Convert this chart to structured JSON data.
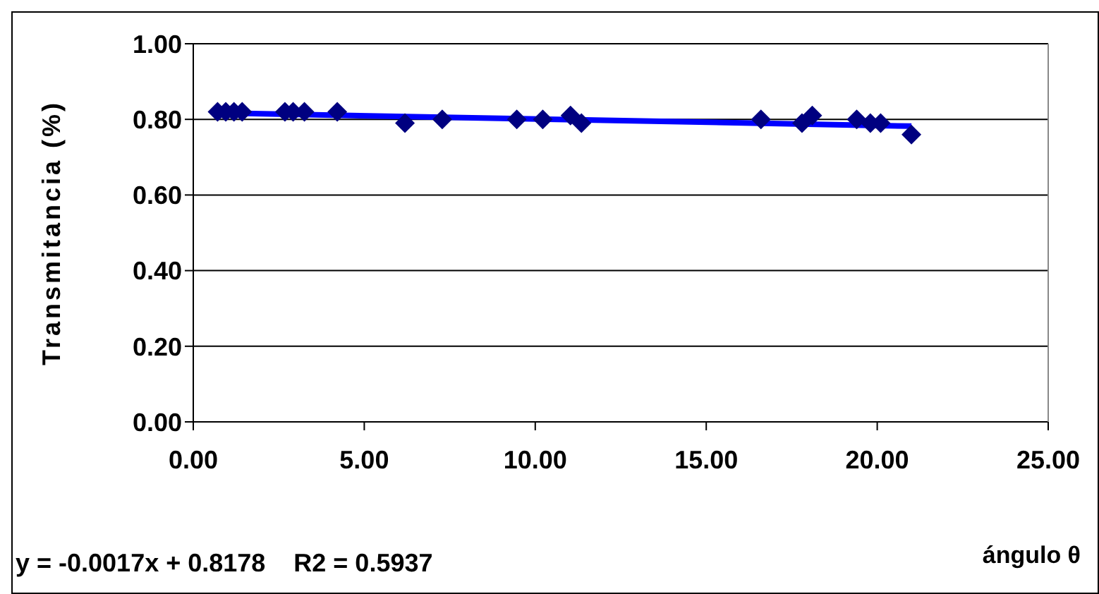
{
  "chart_data": {
    "type": "scatter",
    "xlabel": "ángulo θ",
    "ylabel": "Transmitancia (%)",
    "annotations": [
      "y = -0.0017x + 0.8178    R2 = 0.5937"
    ],
    "xlim": [
      0,
      25
    ],
    "xticks": [
      {
        "value": 0,
        "label": "0.00"
      },
      {
        "value": 5,
        "label": "5.00"
      },
      {
        "value": 10,
        "label": "10.00"
      },
      {
        "value": 15,
        "label": "15.00"
      },
      {
        "value": 20,
        "label": "20.00"
      },
      {
        "value": 25,
        "label": "25.00"
      }
    ],
    "ylim": [
      0,
      1
    ],
    "yticks": [
      {
        "value": 0,
        "label": "0.00"
      },
      {
        "value": 0.2,
        "label": "0.20"
      },
      {
        "value": 0.4,
        "label": "0.40"
      },
      {
        "value": 0.6,
        "label": "0.60"
      },
      {
        "value": 0.8,
        "label": "0.80"
      },
      {
        "value": 1,
        "label": "1.00"
      }
    ],
    "grid": "y",
    "series": [
      {
        "marker": "diamond",
        "color": "#000080",
        "x": [
          0.71,
          0.95,
          1.19,
          1.43,
          2.68,
          2.92,
          3.25,
          4.21,
          6.19,
          7.28,
          9.46,
          10.22,
          11.03,
          11.35,
          16.6,
          17.8,
          18.1,
          19.4,
          19.8,
          20.1,
          21.0
        ],
        "values": [
          0.82,
          0.82,
          0.82,
          0.82,
          0.82,
          0.82,
          0.82,
          0.82,
          0.79,
          0.8,
          0.8,
          0.8,
          0.81,
          0.79,
          0.8,
          0.79,
          0.81,
          0.8,
          0.79,
          0.79,
          0.76
        ]
      },
      {
        "type": "line",
        "color": "#0000ff",
        "x": [
          0.71,
          21.0
        ],
        "values": [
          0.817,
          0.782
        ]
      }
    ]
  }
}
